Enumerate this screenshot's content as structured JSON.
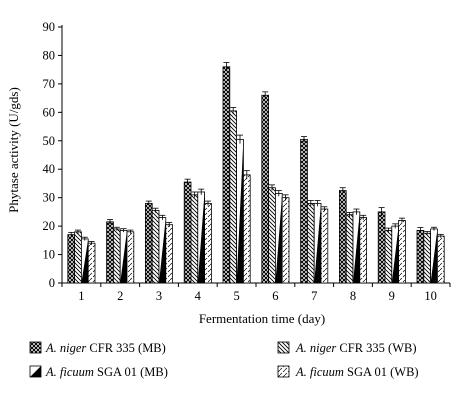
{
  "chart_data": {
    "type": "bar",
    "xlabel": "Fermentation time (day)",
    "ylabel": "Phytase activity (U/gds)",
    "ylim": [
      0,
      90
    ],
    "yticks": [
      0,
      10,
      20,
      30,
      40,
      50,
      60,
      70,
      80,
      90
    ],
    "categories": [
      "1",
      "2",
      "3",
      "4",
      "5",
      "6",
      "7",
      "8",
      "9",
      "10"
    ],
    "grid": false,
    "legend_position": "bottom",
    "series": [
      {
        "name_italic": "A. niger",
        "name_rest": " CFR 335 (MB)",
        "pattern": "crosshatch",
        "values": [
          17,
          21.5,
          28,
          35.5,
          76,
          66,
          50.5,
          32.5,
          25,
          18.5
        ],
        "errors": [
          0.8,
          0.8,
          0.8,
          1.0,
          1.5,
          1.2,
          1.0,
          1.0,
          1.5,
          1.0
        ]
      },
      {
        "name_italic": "A. niger",
        "name_rest": " CFR 335 (WB)",
        "pattern": "backslash",
        "values": [
          18,
          19,
          25.5,
          31,
          60.5,
          33.5,
          28,
          24,
          18.5,
          17.5
        ],
        "errors": [
          0.6,
          0.6,
          0.8,
          1.0,
          1.2,
          1.0,
          1.0,
          0.8,
          0.8,
          0.6
        ]
      },
      {
        "name_italic": "A. ficuum",
        "name_rest": " SGA 01 (MB)",
        "pattern": "half-black",
        "values": [
          15.5,
          18.5,
          23,
          32,
          50.5,
          31.5,
          28,
          25,
          20,
          19
        ],
        "errors": [
          0.6,
          0.6,
          0.8,
          1.0,
          1.5,
          1.0,
          1.0,
          1.0,
          0.8,
          0.6
        ]
      },
      {
        "name_italic": "A. ficuum",
        "name_rest": " SGA 01 (WB)",
        "pattern": "dashed-slash",
        "values": [
          14,
          18,
          20.5,
          28,
          38,
          30,
          26,
          23,
          22,
          16.5
        ],
        "errors": [
          0.6,
          0.6,
          0.8,
          0.8,
          1.5,
          1.0,
          0.8,
          0.8,
          0.8,
          0.6
        ]
      }
    ]
  }
}
